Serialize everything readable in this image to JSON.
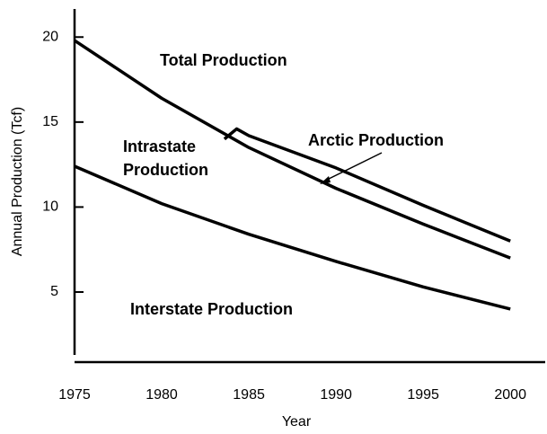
{
  "chart_data": {
    "type": "line",
    "x_label": "Year",
    "y_label": "Annual Production (Tcf)",
    "xlim": [
      1975,
      2002
    ],
    "xticks": [
      1975,
      1980,
      1985,
      1990,
      1995,
      2000
    ],
    "ylim": [
      1.3,
      21.6
    ],
    "yticks": [
      5,
      10,
      15,
      20
    ],
    "series": [
      {
        "color": "#000000",
        "x": [
          1975,
          1980,
          1985,
          1990,
          1995,
          2000
        ],
        "values": [
          19.8,
          16.4,
          13.5,
          11.1,
          9.0,
          7.0
        ]
      },
      {
        "color": "#000000",
        "x": [
          1983.6,
          1984.3,
          1985,
          1990,
          1995,
          2000
        ],
        "values": [
          14.0,
          14.6,
          14.2,
          12.3,
          10.1,
          8.0
        ]
      },
      {
        "color": "#000000",
        "x": [
          1975,
          1980,
          1985,
          1990,
          1995,
          2000
        ],
        "values": [
          12.4,
          10.2,
          8.4,
          6.8,
          5.3,
          4.0
        ]
      }
    ],
    "annotations": [
      "Total Production",
      "Intrastate",
      "Production",
      "Arctic Production",
      "Interstate Production"
    ]
  }
}
